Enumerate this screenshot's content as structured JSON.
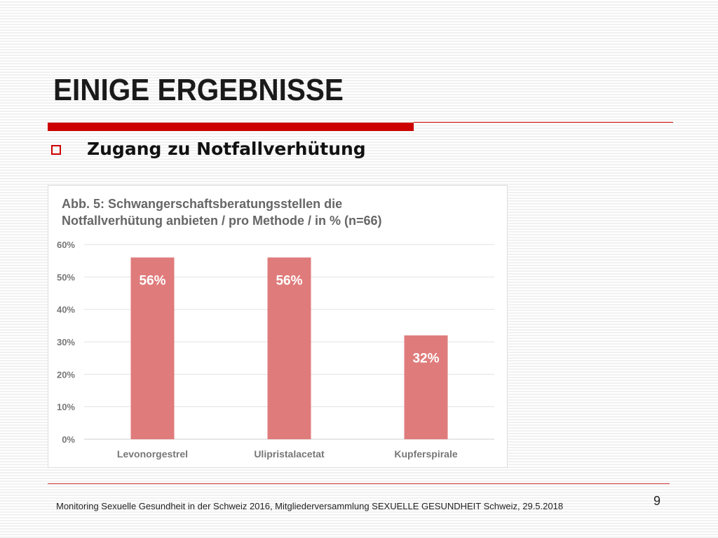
{
  "slide": {
    "title": "EINIGE ERGEBNISSE",
    "bullet": "Zugang zu Notfallverhütung",
    "footer": "Monitoring Sexuelle Gesundheit in der Schweiz 2016, Mitgliederversammlung SEXUELLE GESUNDHEIT Schweiz, 29.5.2018",
    "page_number": "9",
    "accent_color": "#cc0000"
  },
  "chart_data": {
    "type": "bar",
    "title_lines": [
      "Abb. 5: Schwangerschaftsberatungsstellen die",
      "Notfallverhütung anbieten / pro Methode / in % (n=66)"
    ],
    "categories": [
      "Levonorgestrel",
      "Ulipristalacetat",
      "Kupferspirale"
    ],
    "values": [
      56,
      56,
      32
    ],
    "data_labels": [
      "56%",
      "56%",
      "32%"
    ],
    "y_ticks": [
      "0%",
      "10%",
      "20%",
      "30%",
      "40%",
      "50%",
      "60%"
    ],
    "ylim": [
      0,
      60
    ],
    "xlabel": "",
    "ylabel": "",
    "grid": true,
    "bar_color": "#e07b7b"
  }
}
